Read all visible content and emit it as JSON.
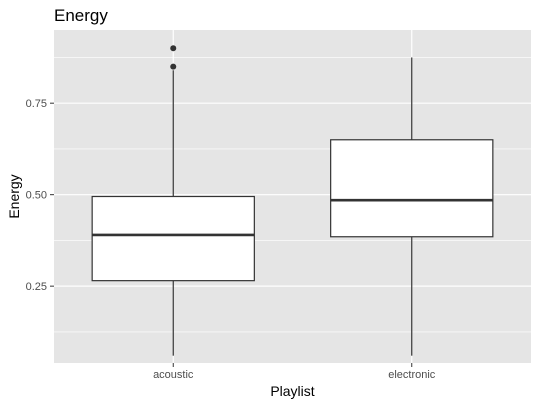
{
  "chart_data": {
    "type": "boxplot",
    "title": "Energy",
    "xlabel": "Playlist",
    "ylabel": "Energy",
    "ylim": [
      0.04,
      0.95
    ],
    "yticks": [
      0.25,
      0.5,
      0.75
    ],
    "ytick_labels": [
      "0.25",
      "0.50",
      "0.75"
    ],
    "categories": [
      "acoustic",
      "electronic"
    ],
    "boxes": [
      {
        "category": "acoustic",
        "whisker_low": 0.06,
        "q1": 0.265,
        "median": 0.39,
        "q3": 0.495,
        "whisker_high": 0.84,
        "outliers": [
          0.85,
          0.9
        ]
      },
      {
        "category": "electronic",
        "whisker_low": 0.06,
        "q1": 0.385,
        "median": 0.485,
        "q3": 0.65,
        "whisker_high": 0.875,
        "outliers": []
      }
    ],
    "grid": true,
    "panel_background": "#e5e5e5",
    "grid_color": "#ffffff",
    "box_fill": "#ffffff",
    "box_stroke": "#333333"
  }
}
